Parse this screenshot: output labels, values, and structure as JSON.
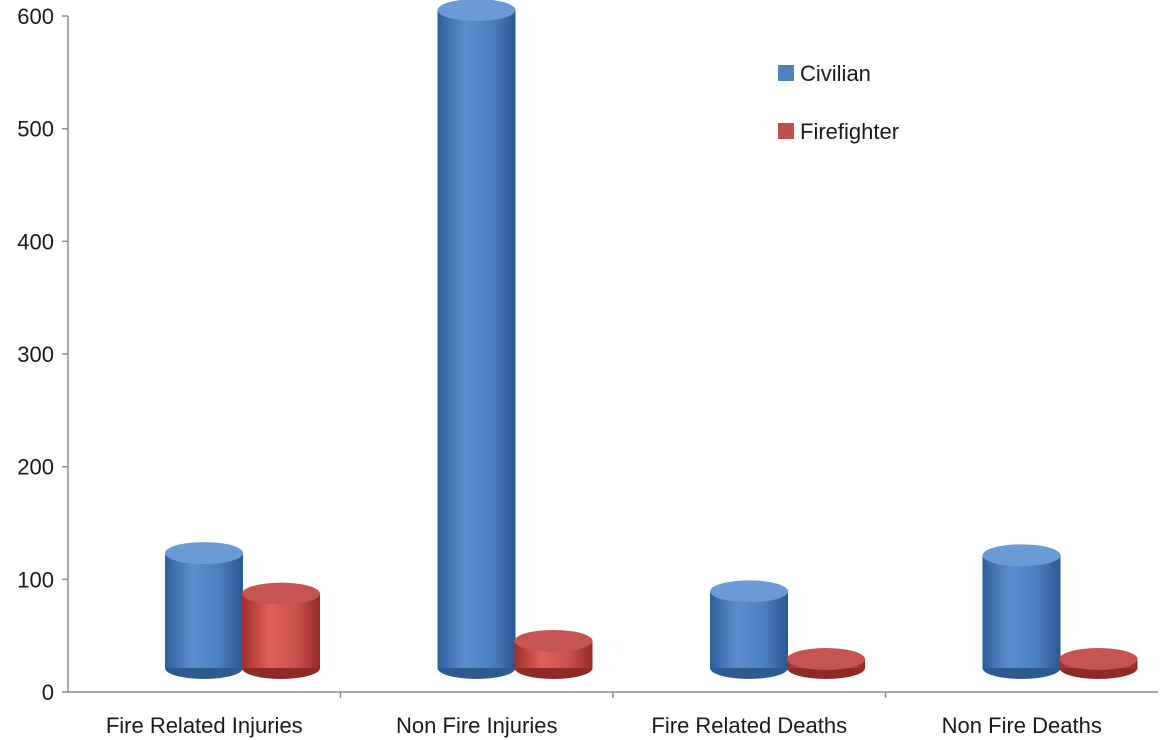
{
  "chart_data": {
    "type": "bar",
    "title": "",
    "xlabel": "",
    "ylabel": "",
    "categories": [
      "Fire Related Injuries",
      "Non Fire Injuries",
      "Fire Related Deaths",
      "Non Fire Deaths"
    ],
    "series": [
      {
        "name": "Civilian",
        "values": [
          102,
          584,
          68,
          100
        ],
        "color": "#4f81bd"
      },
      {
        "name": "Firefighter",
        "values": [
          66,
          24,
          8,
          8
        ],
        "color": "#c0504d"
      }
    ],
    "ylim": [
      0,
      600
    ],
    "yticks": [
      "0",
      "100",
      "200",
      "300",
      "400",
      "500",
      "600"
    ],
    "grid": false,
    "legend_position": "top-right",
    "style": "3d-cylinder"
  }
}
